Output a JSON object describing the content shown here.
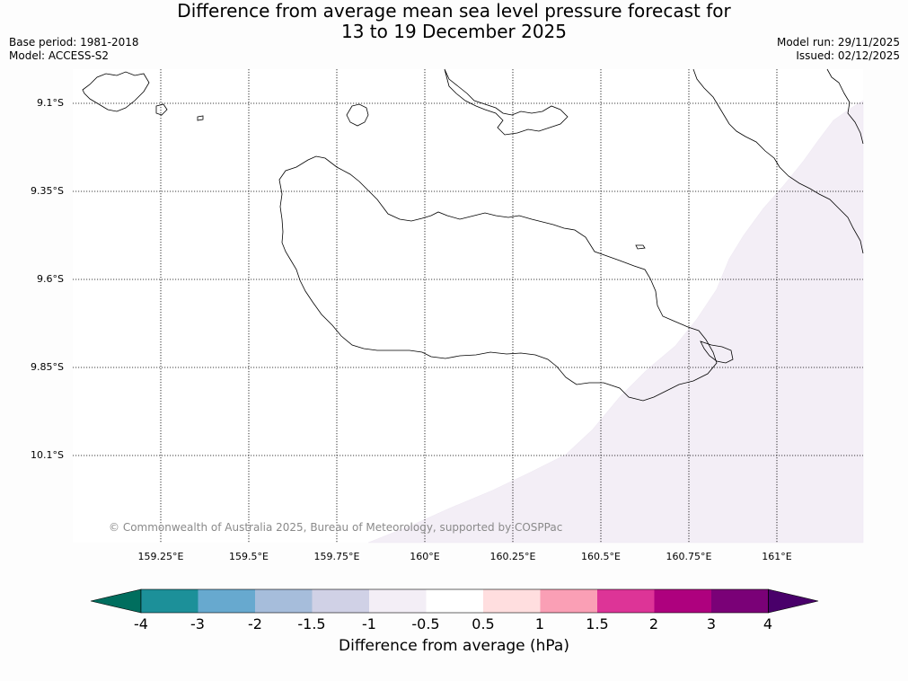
{
  "title": {
    "line1": "Difference from average mean sea level pressure forecast for",
    "line2": "13 to 19 December 2025"
  },
  "meta": {
    "base_period": "Base period: 1981-2018",
    "model": "Model: ACCESS-S2",
    "model_run": "Model run: 29/11/2025",
    "issued": "Issued: 02/12/2025"
  },
  "map": {
    "lat_labels": [
      "9.1°S",
      "9.35°S",
      "9.6°S",
      "9.85°S",
      "10.1°S"
    ],
    "lon_labels": [
      "159.25°E",
      "159.5°E",
      "159.75°E",
      "160°E",
      "160.25°E",
      "160.5°E",
      "160.75°E",
      "161°E"
    ],
    "copyright": "© Commonwealth of Australia 2025, Bureau of Meteorology, supported by COSPPac",
    "shaded_region_value_range": "-1 to -0.5"
  },
  "colorbar": {
    "label": "Difference from average (hPa)",
    "ticks": [
      "-4",
      "-3",
      "-2",
      "-1.5",
      "-1",
      "-0.5",
      "0.5",
      "1",
      "1.5",
      "2",
      "3",
      "4"
    ],
    "colors": [
      "#006e5e",
      "#1c9099",
      "#67a9cf",
      "#a6bddb",
      "#d0d1e6",
      "#f3eef6",
      "#ffffff",
      "#ffdedf",
      "#fa9fb5",
      "#dd3497",
      "#ae017e",
      "#7a0177",
      "#49006a"
    ]
  }
}
